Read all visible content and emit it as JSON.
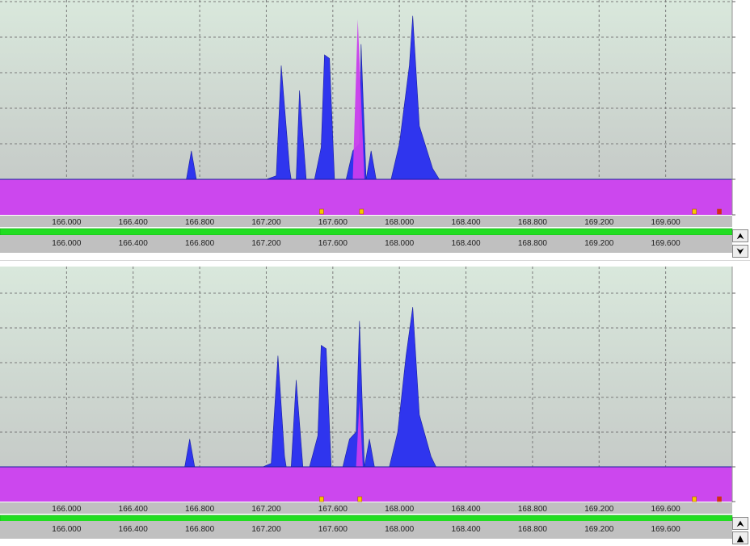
{
  "charts_ui": {
    "top_buttons": {
      "up_icon": "⮝",
      "down_icon": "⮟"
    },
    "bottom_buttons": {
      "up_icon": "⮝",
      "down_icon": "▲"
    }
  },
  "colors": {
    "plot_bg_top": "#d9e8dc",
    "plot_bg_bottom": "#c6cbc8",
    "peak_blue": "#2f35ee",
    "magenta": "#c93ded",
    "scale_bar": "#c0c0c0",
    "green_bar": "#22dd22",
    "marker_yellow": "#f7c800",
    "marker_red": "#e02020"
  },
  "chart_data": [
    {
      "type": "area",
      "x_ticks": [
        "166.000",
        "166.400",
        "166.800",
        "167.200",
        "167.600",
        "168.000",
        "168.400",
        "168.800",
        "169.200",
        "169.600"
      ],
      "y_ticks": [
        "50.0",
        "40.0",
        "30.0",
        "20.0",
        "10.0",
        "0.0",
        "-10.0"
      ],
      "xlim": [
        165.6,
        170.0
      ],
      "ylim": [
        -10,
        50
      ],
      "grid": true,
      "series": [
        {
          "values": [
            [
              165.6,
              0
            ],
            [
              166.72,
              0
            ],
            [
              166.75,
              8
            ],
            [
              166.78,
              0
            ],
            [
              167.2,
              0
            ],
            [
              167.26,
              1
            ],
            [
              167.29,
              32
            ],
            [
              167.34,
              3
            ],
            [
              167.35,
              0
            ],
            [
              167.38,
              0
            ],
            [
              167.4,
              25
            ],
            [
              167.44,
              0
            ],
            [
              167.49,
              0
            ],
            [
              167.53,
              9
            ],
            [
              167.55,
              35
            ],
            [
              167.58,
              34
            ],
            [
              167.61,
              0
            ],
            [
              167.68,
              0
            ],
            [
              167.72,
              8
            ],
            [
              167.76,
              10
            ],
            [
              167.77,
              38
            ],
            [
              167.8,
              0
            ],
            [
              167.83,
              8
            ],
            [
              167.86,
              0
            ],
            [
              167.95,
              0
            ],
            [
              168.0,
              10
            ],
            [
              168.06,
              32
            ],
            [
              168.08,
              46
            ],
            [
              168.12,
              15
            ],
            [
              168.2,
              3
            ],
            [
              168.24,
              0
            ],
            [
              170.0,
              0
            ]
          ]
        },
        {
          "values": [
            [
              165.6,
              -10
            ],
            [
              170.0,
              -10
            ],
            [
              170.0,
              0
            ],
            [
              167.79,
              0
            ],
            [
              167.75,
              45
            ],
            [
              167.72,
              0
            ],
            [
              165.6,
              0
            ]
          ]
        }
      ],
      "markers": [
        {
          "x": 167.53,
          "color": "yellow"
        },
        {
          "x": 167.77,
          "color": "yellow"
        },
        {
          "x": 169.77,
          "color": "yellow"
        },
        {
          "x": 169.92,
          "color": "red"
        }
      ],
      "scrollbar": {
        "range": [
          165.6,
          170.0
        ]
      }
    },
    {
      "type": "area",
      "x_ticks": [
        "166.000",
        "166.400",
        "166.800",
        "167.200",
        "167.600",
        "168.000",
        "168.400",
        "168.800",
        "169.200",
        "169.600"
      ],
      "y_ticks": [
        "50.0",
        "40.0",
        "30.0",
        "20.0",
        "10.0",
        "0.0",
        "-10.0"
      ],
      "xlim": [
        165.6,
        170.0
      ],
      "ylim": [
        -10,
        55
      ],
      "grid": true,
      "series": [
        {
          "values": [
            [
              165.6,
              0
            ],
            [
              166.71,
              0
            ],
            [
              166.74,
              8
            ],
            [
              166.77,
              0
            ],
            [
              167.18,
              0
            ],
            [
              167.23,
              1
            ],
            [
              167.27,
              32
            ],
            [
              167.31,
              3
            ],
            [
              167.32,
              0
            ],
            [
              167.35,
              0
            ],
            [
              167.38,
              25
            ],
            [
              167.42,
              0
            ],
            [
              167.46,
              0
            ],
            [
              167.51,
              9
            ],
            [
              167.53,
              35
            ],
            [
              167.56,
              34
            ],
            [
              167.59,
              0
            ],
            [
              167.66,
              0
            ],
            [
              167.7,
              8
            ],
            [
              167.74,
              10
            ],
            [
              167.76,
              42
            ],
            [
              167.79,
              0
            ],
            [
              167.82,
              8
            ],
            [
              167.85,
              0
            ],
            [
              167.94,
              0
            ],
            [
              167.99,
              10
            ],
            [
              168.04,
              32
            ],
            [
              168.08,
              46
            ],
            [
              168.12,
              15
            ],
            [
              168.19,
              3
            ],
            [
              168.22,
              0
            ],
            [
              170.0,
              0
            ]
          ]
        },
        {
          "values": [
            [
              165.6,
              -10
            ],
            [
              170.0,
              -10
            ],
            [
              170.0,
              0
            ],
            [
              167.78,
              0
            ],
            [
              167.76,
              19
            ],
            [
              167.74,
              0
            ],
            [
              165.6,
              0
            ]
          ]
        }
      ],
      "markers": [
        {
          "x": 167.53,
          "color": "yellow"
        },
        {
          "x": 167.76,
          "color": "yellow"
        },
        {
          "x": 169.77,
          "color": "yellow"
        },
        {
          "x": 169.92,
          "color": "red"
        }
      ],
      "scrollbar": {
        "range": [
          165.6,
          170.0
        ]
      }
    }
  ]
}
